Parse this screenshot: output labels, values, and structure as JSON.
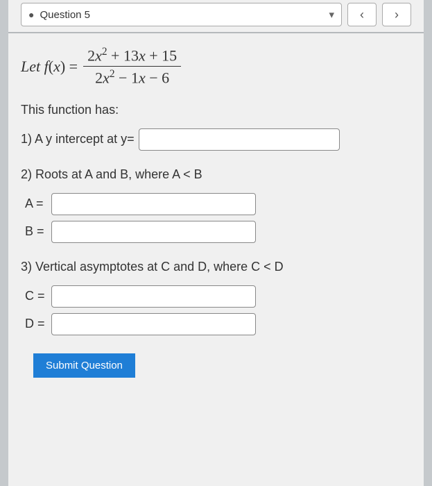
{
  "nav": {
    "dropdown_label": "Question 5",
    "prev_label": "‹",
    "next_label": "›"
  },
  "formula": {
    "lhs": "Let f(x) = ",
    "numerator": "2x² + 13x + 15",
    "denominator": "2x² − 1x − 6"
  },
  "intro": "This function has:",
  "q1": {
    "label": "1) A y intercept at y=",
    "value": ""
  },
  "q2": {
    "label": "2) Roots at A and B, where A < B",
    "a_label": "A =",
    "a_value": "",
    "b_label": "B =",
    "b_value": ""
  },
  "q3": {
    "label": "3) Vertical asymptotes at C and D, where C < D",
    "c_label": "C =",
    "c_value": "",
    "d_label": "D =",
    "d_value": ""
  },
  "submit_label": "Submit Question",
  "colors": {
    "accent": "#1f7ed6",
    "page_bg": "#f0f0f0",
    "outer_bg": "#c5c9cc",
    "border": "#888",
    "text": "#333"
  }
}
